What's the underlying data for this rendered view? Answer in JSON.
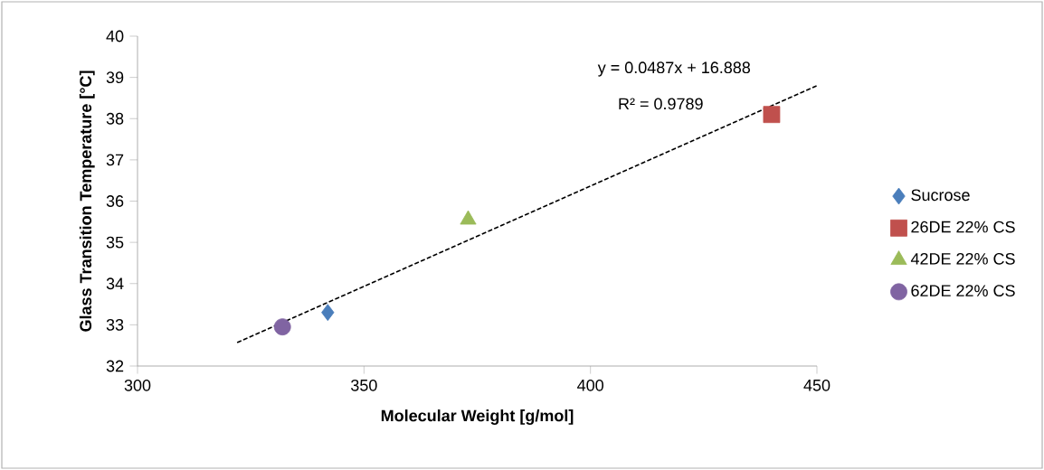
{
  "chart_data": {
    "type": "scatter",
    "xlabel": "Molecular Weight [g/mol]",
    "ylabel": "Glass Transition Temperature [°C]",
    "xlim": [
      300,
      450
    ],
    "xticks": [
      300,
      350,
      400,
      450
    ],
    "ylim": [
      32,
      40
    ],
    "yticks": [
      32,
      33,
      34,
      35,
      36,
      37,
      38,
      39,
      40
    ],
    "grid": false,
    "legend": "right",
    "annotations": [
      "y = 0.0487x + 16.888",
      "R² = 0.9789"
    ],
    "series": [
      {
        "name": "Sucrose",
        "color": "#4a7ebb",
        "marker": "diamond",
        "x": [
          342
        ],
        "values": [
          33.3
        ]
      },
      {
        "name": "26DE 22% CS",
        "color": "#c0504d",
        "marker": "square",
        "x": [
          440
        ],
        "values": [
          38.1
        ]
      },
      {
        "name": "42DE 22% CS",
        "color": "#9bbb59",
        "marker": "triangle",
        "x": [
          373
        ],
        "values": [
          35.55
        ]
      },
      {
        "name": "62DE 22% CS",
        "color": "#8064a2",
        "marker": "circle",
        "x": [
          332
        ],
        "values": [
          32.95
        ]
      },
      {
        "type": "line",
        "color": "#000000",
        "marker": "none",
        "line_style": "dashed",
        "x": [
          322,
          450
        ],
        "values": [
          32.57,
          38.8
        ]
      }
    ]
  }
}
